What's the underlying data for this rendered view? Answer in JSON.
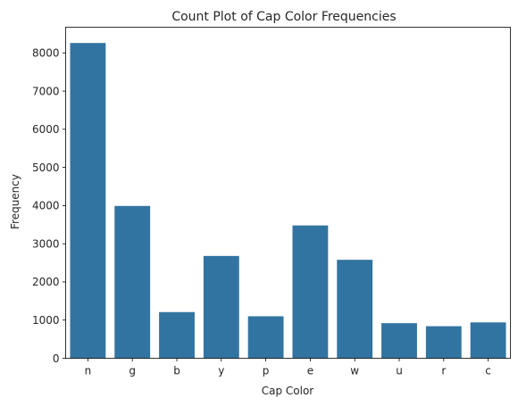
{
  "chart_data": {
    "type": "bar",
    "title": "Count Plot of Cap Color Frequencies",
    "xlabel": "Cap Color",
    "ylabel": "Frequency",
    "categories": [
      "n",
      "g",
      "b",
      "y",
      "p",
      "e",
      "w",
      "u",
      "r",
      "c"
    ],
    "values": [
      8260,
      3990,
      1210,
      2680,
      1100,
      3480,
      2580,
      920,
      840,
      940
    ],
    "ylim": [
      0,
      8673
    ],
    "yticks": [
      0,
      1000,
      2000,
      3000,
      4000,
      5000,
      6000,
      7000,
      8000
    ],
    "grid": false,
    "bar_color": "#3274a1"
  }
}
